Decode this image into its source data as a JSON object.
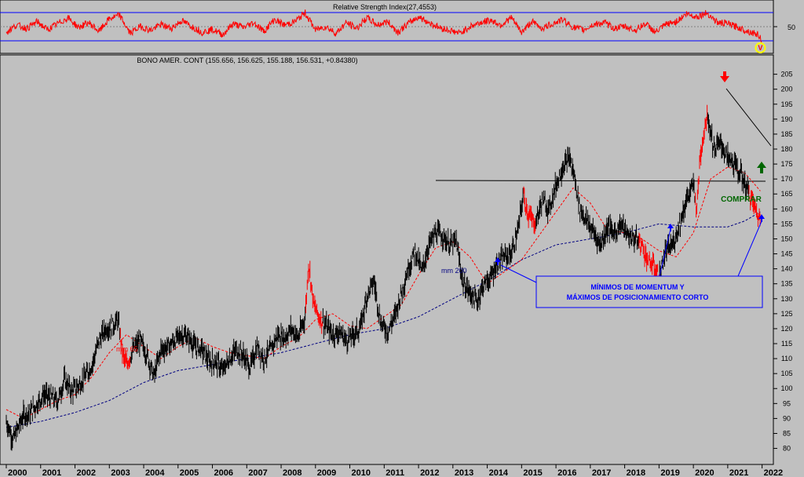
{
  "colors": {
    "background": "#c0c0c0",
    "price": "#000000",
    "price_highlight": "#ff0000",
    "rsi_line": "#ff0000",
    "rsi_band": "#0000ff",
    "mm65": "#ff0000",
    "mm200": "#000080",
    "annotation": "#0000ff",
    "buy": "#006600"
  },
  "rsi_panel": {
    "title": "Relative Strength Index(27,4553)",
    "ylabel_50": "50",
    "marker": "V"
  },
  "price_panel": {
    "title": "BONO AMER. CONT (155.656, 156.625, 155.188, 156.531, +0.84380)"
  },
  "annotations": {
    "mm65_label": "mm 65",
    "mm200_label": "mm 200",
    "box_line1": "MÍNIMOS DE MOMENTUM Y",
    "box_line2": "MÁXIMOS DE POSICIONAMIENTO CORTO",
    "buy_label": "COMPRAR"
  },
  "chart_data": {
    "type": "line",
    "title": "BONO AMER. CONT (155.656, 156.625, 155.188, 156.531, +0.84380)",
    "ylim": [
      77,
      207
    ],
    "yticks": [
      80,
      85,
      90,
      95,
      100,
      105,
      110,
      115,
      120,
      125,
      130,
      135,
      140,
      145,
      150,
      155,
      160,
      165,
      170,
      175,
      180,
      185,
      190,
      195,
      200,
      205
    ],
    "xlim": [
      2000,
      2022.1
    ],
    "xticks": [
      "2000",
      "2001",
      "2002",
      "2003",
      "2004",
      "2005",
      "2006",
      "2007",
      "2008",
      "2009",
      "2010",
      "2011",
      "2012",
      "2013",
      "2014",
      "2015",
      "2016",
      "2017",
      "2018",
      "2019",
      "2020",
      "2021",
      "2022"
    ],
    "series": [
      {
        "name": "BONO AMER. CONT",
        "x": [
          2000.0,
          2000.1,
          2000.2,
          2000.35,
          2000.5,
          2000.7,
          2000.9,
          2001.1,
          2001.3,
          2001.5,
          2001.7,
          2001.9,
          2002.1,
          2002.3,
          2002.5,
          2002.7,
          2002.9,
          2003.1,
          2003.25,
          2003.4,
          2003.5,
          2003.7,
          2003.9,
          2004.1,
          2004.3,
          2004.5,
          2004.7,
          2004.9,
          2005.1,
          2005.3,
          2005.5,
          2005.7,
          2005.9,
          2006.1,
          2006.3,
          2006.5,
          2006.7,
          2006.9,
          2007.1,
          2007.3,
          2007.5,
          2007.7,
          2007.9,
          2008.1,
          2008.3,
          2008.5,
          2008.7,
          2008.8,
          2008.95,
          2009.1,
          2009.3,
          2009.5,
          2009.7,
          2009.9,
          2010.1,
          2010.3,
          2010.5,
          2010.7,
          2010.9,
          2011.1,
          2011.3,
          2011.5,
          2011.7,
          2011.9,
          2012.1,
          2012.3,
          2012.5,
          2012.7,
          2012.9,
          2013.1,
          2013.3,
          2013.5,
          2013.7,
          2013.9,
          2014.1,
          2014.3,
          2014.5,
          2014.7,
          2014.9,
          2015.05,
          2015.2,
          2015.4,
          2015.6,
          2015.8,
          2016.0,
          2016.2,
          2016.4,
          2016.55,
          2016.7,
          2016.9,
          2017.1,
          2017.3,
          2017.5,
          2017.7,
          2017.9,
          2018.1,
          2018.3,
          2018.5,
          2018.7,
          2018.85,
          2019.0,
          2019.2,
          2019.4,
          2019.6,
          2019.8,
          2020.0,
          2020.1,
          2020.2,
          2020.4,
          2020.6,
          2020.8,
          2021.0,
          2021.2,
          2021.4,
          2021.6,
          2021.8,
          2021.95
        ],
        "y": [
          89,
          86,
          83,
          87,
          91,
          92,
          95,
          98,
          97,
          96,
          103,
          99,
          101,
          104,
          108,
          116,
          120,
          121,
          123,
          111,
          108,
          113,
          116,
          111,
          104,
          113,
          114,
          116,
          118,
          117,
          114,
          113,
          109,
          109,
          106,
          110,
          113,
          111,
          107,
          114,
          110,
          113,
          118,
          117,
          120,
          117,
          124,
          142,
          128,
          124,
          121,
          118,
          119,
          116,
          118,
          120,
          131,
          136,
          122,
          119,
          124,
          132,
          140,
          146,
          139,
          148,
          152,
          151,
          148,
          149,
          135,
          132,
          129,
          135,
          137,
          142,
          144,
          145,
          153,
          165,
          158,
          155,
          163,
          160,
          168,
          174,
          177,
          170,
          160,
          156,
          152,
          148,
          154,
          152,
          155,
          151,
          150,
          148,
          142,
          141,
          137,
          146,
          148,
          155,
          163,
          168,
          160,
          178,
          192,
          180,
          182,
          177,
          175,
          171,
          166,
          160,
          156
        ],
        "highlight_color_ranges": [
          [
            2003.3,
            2003.6
          ],
          [
            2008.7,
            2009.2
          ],
          [
            2015.05,
            2015.4
          ],
          [
            2018.4,
            2019.0
          ],
          [
            2020.05,
            2020.4
          ],
          [
            2021.6,
            2022.0
          ]
        ]
      },
      {
        "name": "mm 65",
        "x": [
          2000.0,
          2000.5,
          2001.0,
          2001.5,
          2002.0,
          2002.5,
          2003.0,
          2003.5,
          2004.0,
          2004.5,
          2005.0,
          2005.5,
          2006.0,
          2006.5,
          2007.0,
          2007.5,
          2008.0,
          2008.5,
          2009.0,
          2009.5,
          2010.0,
          2010.5,
          2011.0,
          2011.5,
          2012.0,
          2012.5,
          2013.0,
          2013.5,
          2014.0,
          2014.5,
          2015.0,
          2015.5,
          2016.0,
          2016.5,
          2017.0,
          2017.5,
          2018.0,
          2018.5,
          2019.0,
          2019.5,
          2020.0,
          2020.5,
          2021.0,
          2021.5,
          2021.95
        ],
        "y": [
          93,
          90,
          93,
          96,
          98,
          104,
          112,
          118,
          114,
          110,
          114,
          117,
          114,
          112,
          111,
          110,
          114,
          117,
          123,
          125,
          121,
          120,
          124,
          128,
          138,
          147,
          149,
          144,
          135,
          139,
          143,
          151,
          159,
          167,
          162,
          153,
          152,
          150,
          146,
          144,
          152,
          170,
          174,
          172,
          166
        ]
      },
      {
        "name": "mm 200",
        "x": [
          2000.0,
          2001.0,
          2002.0,
          2003.0,
          2004.0,
          2005.0,
          2006.0,
          2007.0,
          2008.0,
          2009.0,
          2010.0,
          2011.0,
          2012.0,
          2013.0,
          2014.0,
          2015.0,
          2016.0,
          2017.0,
          2018.0,
          2019.0,
          2020.0,
          2021.0,
          2021.5,
          2021.95
        ],
        "y": [
          87,
          89,
          92,
          96,
          102,
          106,
          108,
          110,
          112,
          115,
          118,
          120,
          124,
          130,
          136,
          143,
          148,
          150,
          152,
          155,
          154,
          154,
          156,
          159
        ]
      }
    ],
    "rsi": {
      "title": "Relative Strength Index(27,4553)",
      "ylim": [
        0,
        100
      ],
      "bands": [
        70,
        30
      ],
      "mid": 50,
      "x": [
        2000.0,
        2000.3,
        2000.6,
        2000.9,
        2001.2,
        2001.5,
        2001.8,
        2002.1,
        2002.4,
        2002.7,
        2003.0,
        2003.3,
        2003.6,
        2003.9,
        2004.2,
        2004.5,
        2004.8,
        2005.1,
        2005.4,
        2005.7,
        2006.0,
        2006.3,
        2006.6,
        2006.9,
        2007.2,
        2007.5,
        2007.8,
        2008.1,
        2008.4,
        2008.7,
        2009.0,
        2009.3,
        2009.6,
        2009.9,
        2010.2,
        2010.5,
        2010.8,
        2011.1,
        2011.4,
        2011.7,
        2012.0,
        2012.3,
        2012.6,
        2012.9,
        2013.2,
        2013.5,
        2013.8,
        2014.1,
        2014.4,
        2014.7,
        2015.0,
        2015.3,
        2015.6,
        2015.9,
        2016.2,
        2016.5,
        2016.8,
        2017.1,
        2017.4,
        2017.7,
        2018.0,
        2018.3,
        2018.6,
        2018.9,
        2019.2,
        2019.5,
        2019.8,
        2020.1,
        2020.4,
        2020.7,
        2021.0,
        2021.3,
        2021.6,
        2021.9,
        2022.0
      ],
      "y": [
        40,
        55,
        48,
        62,
        45,
        58,
        70,
        50,
        60,
        42,
        68,
        75,
        38,
        52,
        44,
        56,
        48,
        64,
        52,
        40,
        46,
        35,
        58,
        50,
        60,
        42,
        66,
        55,
        62,
        80,
        45,
        52,
        38,
        60,
        48,
        70,
        55,
        62,
        40,
        58,
        72,
        60,
        50,
        44,
        38,
        52,
        60,
        65,
        55,
        70,
        40,
        62,
        48,
        58,
        66,
        50,
        45,
        56,
        60,
        48,
        52,
        44,
        58,
        40,
        56,
        62,
        78,
        72,
        80,
        60,
        58,
        50,
        42,
        35,
        22
      ],
      "yellow_marker_x": 2021.95
    }
  }
}
